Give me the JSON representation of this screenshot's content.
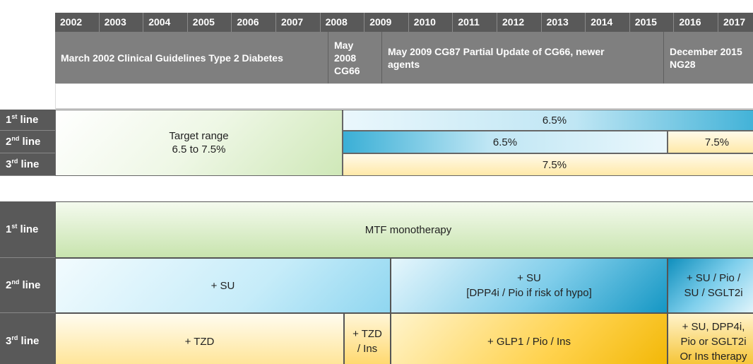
{
  "years": [
    "2002",
    "2003",
    "2004",
    "2005",
    "2006",
    "2007",
    "2008",
    "2009",
    "2010",
    "2011",
    "2012",
    "2013",
    "2014",
    "2015",
    "2016",
    "2017"
  ],
  "guidelines": [
    {
      "lines": [
        "March 2002 Clinical Guidelines Type 2 Diabetes"
      ]
    },
    {
      "lines": [
        "May",
        "2008",
        "CG66"
      ]
    },
    {
      "lines": [
        "May 2009 CG87 Partial Update of CG66, newer",
        "agents"
      ]
    },
    {
      "lines": [
        "December 2015",
        "NG28"
      ]
    }
  ],
  "row_labels": [
    {
      "num": "1",
      "sup": "st",
      "text": "line"
    },
    {
      "num": "2",
      "sup": "nd",
      "text": "line"
    },
    {
      "num": "3",
      "sup": "rd",
      "text": "line"
    }
  ],
  "targets": [
    {
      "lines": [
        "Target range",
        "6.5 to 7.5%"
      ]
    },
    {
      "lines": [
        "6.5%"
      ]
    },
    {
      "lines": [
        "6.5%"
      ]
    },
    {
      "lines": [
        "7.5%"
      ]
    },
    {
      "lines": [
        "7.5%"
      ]
    }
  ],
  "therapy": [
    {
      "lines": [
        "MTF monotherapy"
      ]
    },
    {
      "lines": [
        "+ SU"
      ]
    },
    {
      "lines": [
        "+ SU",
        "[DPP4i / Pio if  risk of hypo]"
      ]
    },
    {
      "lines": [
        "+ SU / Pio /",
        "SU / SGLT2i"
      ]
    },
    {
      "lines": [
        "+ TZD"
      ]
    },
    {
      "lines": [
        "+ TZD",
        "/ Ins"
      ]
    },
    {
      "lines": [
        "+ GLP1 / Pio / Ins"
      ]
    },
    {
      "lines": [
        "+ SU, DPP4i,",
        "Pio or SGLT2i",
        "Or Ins therapy"
      ]
    }
  ]
}
